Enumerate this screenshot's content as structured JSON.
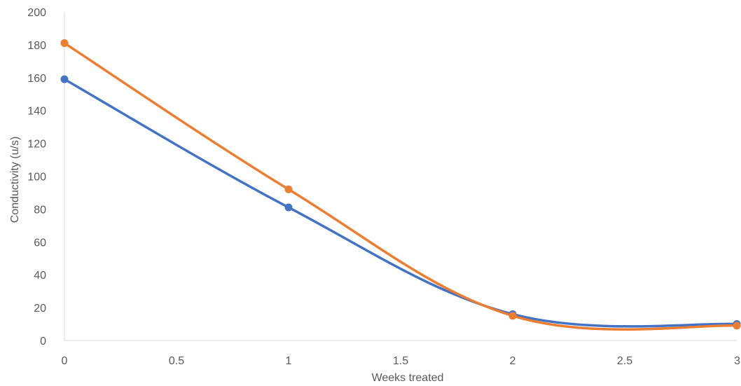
{
  "chart_data": {
    "type": "line",
    "title": "",
    "xlabel": "Weeks treated",
    "ylabel": "Conductivity (u/s)",
    "xlim": [
      0,
      3
    ],
    "ylim": [
      0,
      200
    ],
    "x_ticks": [
      "0",
      "0.5",
      "1",
      "1.5",
      "2",
      "2.5",
      "3"
    ],
    "y_ticks": [
      "0",
      "20",
      "40",
      "60",
      "80",
      "100",
      "120",
      "140",
      "160",
      "180",
      "200"
    ],
    "grid": false,
    "legend": "none",
    "smoothed": true,
    "x": [
      0,
      1,
      2,
      3
    ],
    "series": [
      {
        "color": "#4472C4",
        "values": [
          159,
          81,
          16,
          10
        ]
      },
      {
        "color": "#ED7D31",
        "values": [
          181,
          92,
          15,
          9
        ]
      }
    ]
  }
}
